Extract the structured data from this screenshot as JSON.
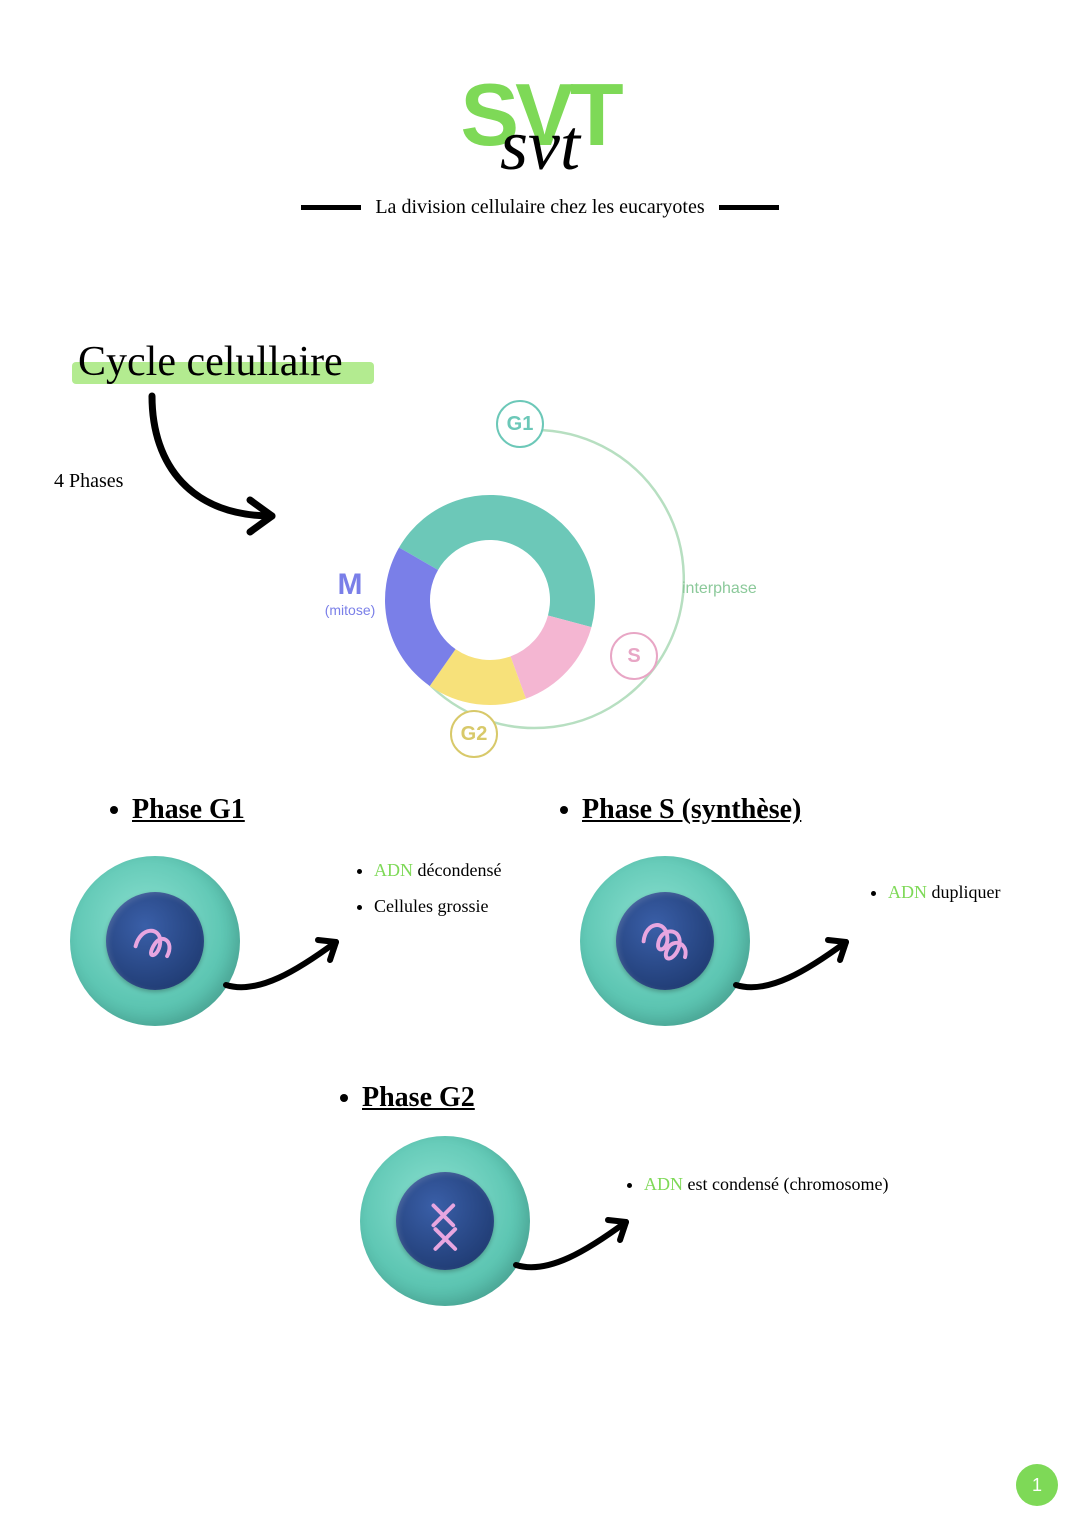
{
  "logo": {
    "block": "SVT",
    "script": "svt"
  },
  "subtitle": "La division cellulaire chez les eucaryotes",
  "section_title": "Cycle celullaire",
  "phases_count_label": "4 Phases",
  "cycle": {
    "type": "donut",
    "segments": [
      {
        "name": "G1",
        "color": "#6cc8b8",
        "start_deg": -60,
        "end_deg": 105
      },
      {
        "name": "S",
        "color": "#f4b6d2",
        "start_deg": 105,
        "end_deg": 160
      },
      {
        "name": "G2",
        "color": "#f7e17a",
        "start_deg": 160,
        "end_deg": 215
      },
      {
        "name": "M",
        "color": "#7a7fe8",
        "start_deg": 215,
        "end_deg": 300
      }
    ],
    "inner_radius_pct": 56,
    "outer_radius_pct": 100,
    "background": "#ffffff",
    "outer_arc_color": "#b7dfc1",
    "labels": {
      "M": {
        "text": "M",
        "sub": "(mitose)",
        "color": "#7a7fe8",
        "fontsize": 30
      },
      "interphase": {
        "text": "interphase",
        "color": "#8bc99a",
        "fontsize": 16
      },
      "G1": {
        "text": "G1",
        "color": "#6cc8b8"
      },
      "S": {
        "text": "S",
        "color": "#e8a6c5"
      },
      "G2": {
        "text": "G2",
        "color": "#d8c96a"
      }
    }
  },
  "phase_g1": {
    "title": "Phase G1",
    "details": [
      {
        "highlight": "ADN",
        "rest": " décondensé"
      },
      {
        "highlight": "",
        "rest": "Cellules grossie"
      }
    ]
  },
  "phase_s": {
    "title": "Phase S (synthèse)",
    "details": [
      {
        "highlight": "ADN",
        "rest": " dupliquer"
      }
    ]
  },
  "phase_g2": {
    "title": "Phase G2",
    "details": [
      {
        "highlight": "ADN",
        "rest": " est condensé (chromosome)"
      }
    ]
  },
  "cell_style": {
    "cytoplasm_color": "#6cc8b8",
    "nucleus_color": "#23407a",
    "dna_color": "#e8a6e0"
  },
  "colors": {
    "accent_green": "#7ed957",
    "highlight_green": "#a6e77c",
    "black": "#000000",
    "white": "#ffffff"
  },
  "typography": {
    "title_fontsize": 42,
    "subtitle_fontsize": 20,
    "phase_title_fontsize": 28,
    "detail_fontsize": 18
  },
  "page_number": "1"
}
